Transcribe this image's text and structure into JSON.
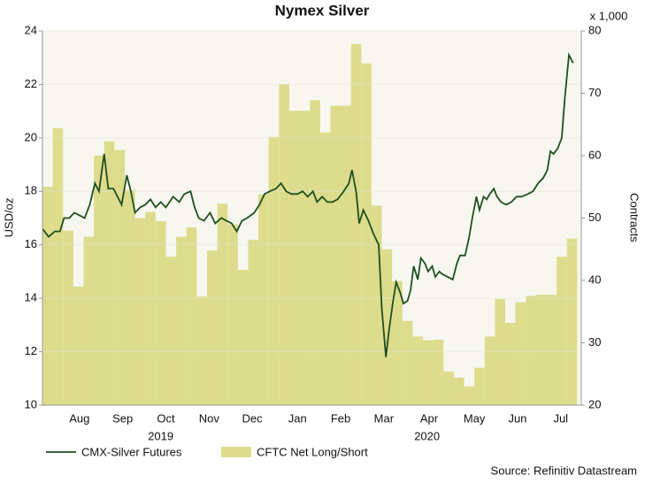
{
  "chart_data": {
    "type": "combo",
    "title": "Nymex Silver",
    "y_label": "USD/oz",
    "y2_label": "Contracts",
    "y2_unit": "x 1,000",
    "source": "Source: Refinitiv Datastream",
    "xlim": [
      0,
      52.4
    ],
    "xticks": [
      {
        "value": 3.6,
        "label": "Aug"
      },
      {
        "value": 7.8,
        "label": "Sep"
      },
      {
        "value": 12.0,
        "label": "Oct"
      },
      {
        "value": 16.2,
        "label": "Nov"
      },
      {
        "value": 20.4,
        "label": "Dec"
      },
      {
        "value": 24.8,
        "label": "Jan"
      },
      {
        "value": 29.0,
        "label": "Feb"
      },
      {
        "value": 33.2,
        "label": "Mar"
      },
      {
        "value": 37.6,
        "label": "Apr"
      },
      {
        "value": 42.0,
        "label": "May"
      },
      {
        "value": 46.2,
        "label": "Jun"
      },
      {
        "value": 50.4,
        "label": "Jul"
      }
    ],
    "annotations": [
      {
        "text": "2019",
        "x": 11.5
      },
      {
        "text": "2020",
        "x": 37.4
      }
    ],
    "ylim": [
      10,
      24
    ],
    "yticks": [
      10,
      12,
      14,
      16,
      18,
      20,
      22,
      24
    ],
    "y2lim": [
      20,
      80
    ],
    "y2ticks": [
      20,
      30,
      40,
      50,
      60,
      70,
      80
    ],
    "grid": true,
    "legend": "bottom",
    "series": [
      {
        "name": "CMX-Silver Futures",
        "type": "line",
        "axis": "y",
        "color": "#1f4f1f",
        "x": [
          0,
          0.6,
          1.2,
          1.7,
          2.1,
          2.6,
          3.1,
          3.6,
          4.1,
          4.6,
          5.1,
          5.5,
          6.0,
          6.4,
          6.9,
          7.3,
          7.7,
          8.2,
          8.6,
          9.0,
          9.5,
          10.0,
          10.5,
          11.0,
          11.5,
          12.0,
          12.7,
          13.3,
          13.8,
          14.4,
          14.8,
          15.2,
          15.7,
          16.3,
          16.8,
          17.4,
          17.9,
          18.4,
          18.9,
          19.4,
          19.9,
          20.6,
          21.1,
          21.6,
          22.1,
          22.7,
          23.2,
          23.7,
          24.2,
          24.8,
          25.3,
          25.8,
          26.3,
          26.7,
          27.2,
          27.7,
          28.2,
          28.7,
          29.3,
          29.8,
          30.1,
          30.5,
          30.8,
          31.2,
          31.7,
          32.2,
          32.7,
          33.0,
          33.4,
          33.7,
          34.1,
          34.4,
          34.8,
          35.1,
          35.5,
          35.8,
          36.1,
          36.5,
          36.8,
          37.2,
          37.5,
          37.9,
          38.2,
          38.6,
          38.9,
          39.4,
          39.9,
          40.3,
          40.6,
          41.1,
          41.5,
          41.8,
          42.2,
          42.5,
          42.9,
          43.2,
          43.5,
          43.9,
          44.2,
          44.6,
          45.1,
          45.6,
          46.1,
          46.6,
          47.2,
          47.7,
          48.2,
          48.7,
          49.1,
          49.4,
          49.7,
          50.1,
          50.5,
          50.8,
          51.2,
          51.6
        ],
        "values": [
          16.6,
          16.3,
          16.5,
          16.5,
          17.0,
          17.0,
          17.2,
          17.1,
          17.0,
          17.5,
          18.3,
          18.0,
          19.4,
          18.1,
          18.1,
          17.8,
          17.5,
          18.6,
          18.0,
          17.2,
          17.4,
          17.5,
          17.7,
          17.4,
          17.6,
          17.4,
          17.8,
          17.6,
          17.9,
          18.0,
          17.4,
          17.0,
          16.9,
          17.2,
          16.8,
          17.0,
          16.9,
          16.8,
          16.5,
          16.9,
          17.0,
          17.2,
          17.5,
          17.9,
          18.0,
          18.1,
          18.3,
          18.0,
          17.9,
          17.9,
          18.0,
          17.8,
          18.0,
          17.6,
          17.8,
          17.6,
          17.6,
          17.7,
          18.0,
          18.3,
          18.8,
          18.0,
          16.8,
          17.3,
          16.9,
          16.4,
          16.0,
          13.6,
          11.8,
          12.8,
          13.9,
          14.6,
          14.2,
          13.8,
          13.9,
          14.3,
          15.2,
          14.7,
          15.5,
          15.3,
          15.0,
          15.2,
          14.8,
          15.0,
          14.9,
          14.8,
          14.7,
          15.3,
          15.6,
          15.6,
          16.3,
          17.0,
          17.8,
          17.3,
          17.8,
          17.7,
          17.9,
          18.1,
          17.8,
          17.6,
          17.5,
          17.6,
          17.8,
          17.8,
          17.9,
          18.0,
          18.3,
          18.5,
          18.8,
          19.5,
          19.4,
          19.6,
          20.0,
          21.5,
          23.1,
          22.8
        ]
      },
      {
        "name": "CFTC Net Long/Short",
        "type": "bar",
        "axis": "y2",
        "color": "#dcdc8c",
        "x": [
          0.5,
          1.5,
          2.5,
          3.5,
          4.5,
          5.5,
          6.5,
          7.5,
          8.5,
          9.5,
          10.5,
          11.5,
          12.5,
          13.5,
          14.5,
          15.5,
          16.5,
          17.5,
          18.5,
          19.5,
          20.5,
          21.5,
          22.5,
          23.5,
          24.5,
          25.5,
          26.5,
          27.5,
          28.5,
          29.5,
          30.5,
          31.5,
          32.5,
          33.5,
          34.5,
          35.5,
          36.5,
          37.5,
          38.5,
          39.5,
          40.5,
          41.5,
          42.5,
          43.5,
          44.5,
          45.5,
          46.5,
          47.5,
          48.5,
          49.5,
          50.5,
          51.5
        ],
        "values": [
          55,
          64.4,
          48,
          39,
          47,
          60,
          62.3,
          60.9,
          54.5,
          50,
          51,
          49.5,
          43.8,
          47,
          48.5,
          37.4,
          44.8,
          52.3,
          49,
          41.7,
          46.5,
          53.8,
          63,
          71.5,
          67.2,
          67.2,
          68.9,
          63.7,
          68,
          68,
          77.9,
          74.8,
          52,
          45,
          39.9,
          33.5,
          31,
          30.4,
          30.5,
          25.4,
          24.4,
          23,
          26,
          31,
          37,
          33.2,
          36.5,
          37.5,
          37.7,
          37.7,
          43.8,
          46.7
        ]
      }
    ]
  }
}
